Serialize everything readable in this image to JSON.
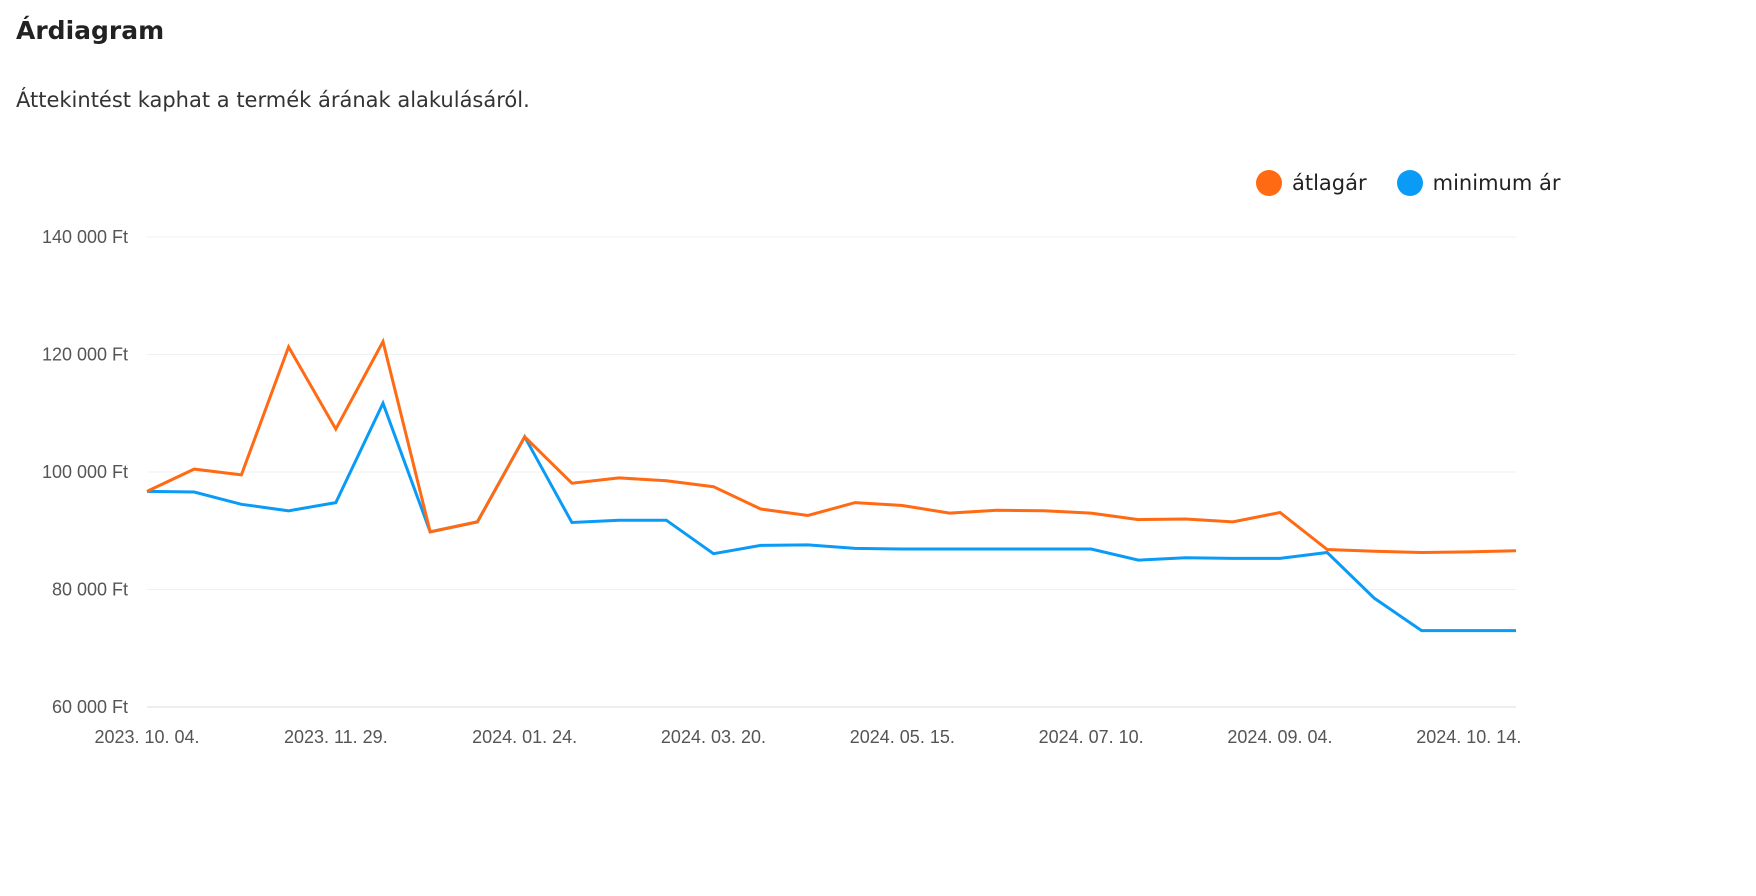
{
  "header": {
    "title": "Árdiagram",
    "subtitle": "Áttekintést kaphat a termék árának alakulásáról."
  },
  "chart_data": {
    "type": "line",
    "title": "Árdiagram",
    "xlabel": "",
    "ylabel": "",
    "ylim": [
      60000,
      140000
    ],
    "yticks": [
      60000,
      80000,
      100000,
      120000,
      140000
    ],
    "ytick_labels": [
      "60 000 Ft",
      "80 000 Ft",
      "100 000 Ft",
      "120 000 Ft",
      "140 000 Ft"
    ],
    "grid": true,
    "legend_position": "top-right",
    "x_tick_labels": [
      {
        "index": 0,
        "label": "2023. 10. 04."
      },
      {
        "index": 4,
        "label": "2023. 11. 29."
      },
      {
        "index": 8,
        "label": "2024. 01. 24."
      },
      {
        "index": 12,
        "label": "2024. 03. 20."
      },
      {
        "index": 16,
        "label": "2024. 05. 15."
      },
      {
        "index": 20,
        "label": "2024. 07. 10."
      },
      {
        "index": 24,
        "label": "2024. 09. 04."
      },
      {
        "index": 28,
        "label": "2024. 10. 14."
      }
    ],
    "point_count": 30,
    "series": [
      {
        "name": "átlagár",
        "color": "#ff6a13",
        "values": [
          96700,
          100500,
          99500,
          121300,
          107300,
          122200,
          89800,
          91500,
          106000,
          98100,
          99000,
          98500,
          97500,
          93700,
          92600,
          94800,
          94300,
          93000,
          93500,
          93400,
          93000,
          91900,
          92000,
          91500,
          93100,
          86800,
          86500,
          86300,
          86400,
          86600
        ]
      },
      {
        "name": "minimum ár",
        "color": "#0a9bf7",
        "values": [
          96700,
          96600,
          94500,
          93400,
          94800,
          111700,
          89800,
          91500,
          106000,
          91400,
          91800,
          91800,
          86100,
          87500,
          87600,
          87000,
          86900,
          86900,
          86900,
          86900,
          86900,
          85000,
          85400,
          85300,
          85300,
          86300,
          78500,
          73000,
          73000,
          73000
        ]
      }
    ]
  }
}
